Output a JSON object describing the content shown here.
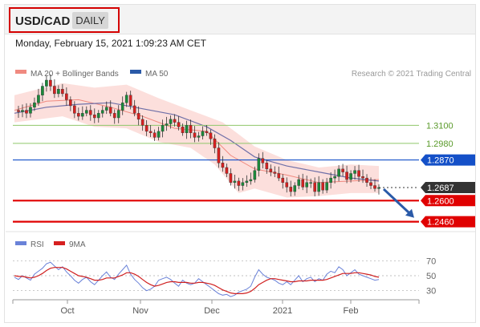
{
  "header": {
    "symbol": "USD/CAD",
    "period": "DAILY",
    "timestamp": "Monday, February 15, 2021 1:09:23 AM CET"
  },
  "legend": {
    "bollinger": "MA 20 + Bollinger Bands",
    "ma50": "MA 50",
    "rsi": "RSI",
    "rsi_ma": "9MA",
    "copyright": "Research © 2021 Trading Central"
  },
  "colors": {
    "up_candle": "#1a8a3a",
    "down_candle": "#d62020",
    "bollinger_fill": "#fbd9d6",
    "ma20": "#f08a80",
    "ma50": "#7070a8",
    "level_green": "#8fc76a",
    "level_blue": "#1450c8",
    "level_red": "#e00000",
    "rsi_line": "#6a82d8",
    "rsi_ma_line": "#d02020",
    "arrow": "#2a5aa8"
  },
  "chart_data": [
    {
      "type": "candlestick",
      "title": "USD/CAD",
      "x_axis": [
        "Oct",
        "Nov",
        "Dec",
        "2021",
        "Feb"
      ],
      "ylim": [
        1.241,
        1.34
      ],
      "current_price": 1.2687,
      "levels": [
        {
          "label": "1.3100",
          "value": 1.31,
          "style": "resistance-green"
        },
        {
          "label": "1.2980",
          "value": 1.298,
          "style": "resistance-green"
        },
        {
          "label": "1.2870",
          "value": 1.287,
          "style": "pivot-blue"
        },
        {
          "label": "1.2600",
          "value": 1.26,
          "style": "support-red"
        },
        {
          "label": "1.2460",
          "value": 1.246,
          "style": "support-red"
        }
      ],
      "current_label": "1.2687",
      "close_path": [
        [
          0,
          1.32
        ],
        [
          5,
          1.319
        ],
        [
          10,
          1.32
        ],
        [
          15,
          1.318
        ],
        [
          20,
          1.322
        ],
        [
          25,
          1.325
        ],
        [
          30,
          1.33
        ],
        [
          35,
          1.336
        ],
        [
          40,
          1.34
        ],
        [
          45,
          1.336
        ],
        [
          50,
          1.331
        ],
        [
          55,
          1.334
        ],
        [
          60,
          1.331
        ],
        [
          65,
          1.327
        ],
        [
          70,
          1.323
        ],
        [
          75,
          1.318
        ],
        [
          80,
          1.316
        ],
        [
          85,
          1.318
        ],
        [
          90,
          1.32
        ],
        [
          95,
          1.317
        ],
        [
          100,
          1.315
        ],
        [
          105,
          1.318
        ],
        [
          110,
          1.32
        ],
        [
          115,
          1.322
        ],
        [
          120,
          1.318
        ],
        [
          125,
          1.315
        ],
        [
          130,
          1.32
        ],
        [
          135,
          1.325
        ],
        [
          140,
          1.33
        ],
        [
          145,
          1.323
        ],
        [
          150,
          1.318
        ],
        [
          155,
          1.314
        ],
        [
          160,
          1.31
        ],
        [
          165,
          1.306
        ],
        [
          170,
          1.305
        ],
        [
          175,
          1.302
        ],
        [
          180,
          1.306
        ],
        [
          185,
          1.31
        ],
        [
          190,
          1.311
        ],
        [
          195,
          1.314
        ],
        [
          200,
          1.312
        ],
        [
          205,
          1.309
        ],
        [
          210,
          1.305
        ],
        [
          215,
          1.31
        ],
        [
          220,
          1.305
        ],
        [
          225,
          1.302
        ],
        [
          230,
          1.303
        ],
        [
          235,
          1.306
        ],
        [
          240,
          1.305
        ],
        [
          245,
          1.301
        ],
        [
          250,
          1.295
        ],
        [
          255,
          1.285
        ],
        [
          260,
          1.282
        ],
        [
          265,
          1.278
        ],
        [
          270,
          1.272
        ],
        [
          275,
          1.273
        ],
        [
          280,
          1.27
        ],
        [
          285,
          1.272
        ],
        [
          290,
          1.273
        ],
        [
          295,
          1.274
        ],
        [
          300,
          1.28
        ],
        [
          305,
          1.288
        ],
        [
          310,
          1.285
        ],
        [
          315,
          1.281
        ],
        [
          320,
          1.279
        ],
        [
          325,
          1.278
        ],
        [
          330,
          1.275
        ],
        [
          335,
          1.272
        ],
        [
          340,
          1.269
        ],
        [
          345,
          1.266
        ],
        [
          350,
          1.27
        ],
        [
          355,
          1.274
        ],
        [
          360,
          1.269
        ],
        [
          365,
          1.272
        ],
        [
          370,
          1.272
        ],
        [
          375,
          1.266
        ],
        [
          380,
          1.272
        ],
        [
          385,
          1.267
        ],
        [
          390,
          1.272
        ],
        [
          395,
          1.275
        ],
        [
          400,
          1.276
        ],
        [
          405,
          1.281
        ],
        [
          410,
          1.279
        ],
        [
          415,
          1.274
        ],
        [
          420,
          1.278
        ],
        [
          425,
          1.28
        ],
        [
          430,
          1.276
        ],
        [
          435,
          1.275
        ],
        [
          440,
          1.272
        ],
        [
          445,
          1.27
        ],
        [
          450,
          1.268
        ],
        [
          455,
          1.2687
        ]
      ],
      "bollinger_upper": [
        [
          0,
          1.33
        ],
        [
          60,
          1.338
        ],
        [
          100,
          1.335
        ],
        [
          140,
          1.337
        ],
        [
          180,
          1.328
        ],
        [
          220,
          1.32
        ],
        [
          260,
          1.312
        ],
        [
          280,
          1.304
        ],
        [
          300,
          1.296
        ],
        [
          340,
          1.287
        ],
        [
          380,
          1.282
        ],
        [
          420,
          1.284
        ],
        [
          455,
          1.283
        ]
      ],
      "bollinger_lower": [
        [
          0,
          1.312
        ],
        [
          60,
          1.316
        ],
        [
          100,
          1.309
        ],
        [
          140,
          1.308
        ],
        [
          180,
          1.299
        ],
        [
          220,
          1.295
        ],
        [
          250,
          1.284
        ],
        [
          280,
          1.265
        ],
        [
          300,
          1.268
        ],
        [
          340,
          1.262
        ],
        [
          380,
          1.263
        ],
        [
          420,
          1.265
        ],
        [
          455,
          1.265
        ]
      ],
      "ma20": [
        [
          0,
          1.32
        ],
        [
          40,
          1.326
        ],
        [
          80,
          1.327
        ],
        [
          120,
          1.322
        ],
        [
          160,
          1.316
        ],
        [
          200,
          1.308
        ],
        [
          240,
          1.306
        ],
        [
          270,
          1.29
        ],
        [
          300,
          1.281
        ],
        [
          340,
          1.277
        ],
        [
          380,
          1.272
        ],
        [
          420,
          1.273
        ],
        [
          455,
          1.274
        ]
      ],
      "ma50": [
        [
          0,
          1.318
        ],
        [
          40,
          1.322
        ],
        [
          80,
          1.324
        ],
        [
          120,
          1.325
        ],
        [
          160,
          1.321
        ],
        [
          200,
          1.317
        ],
        [
          240,
          1.309
        ],
        [
          270,
          1.3
        ],
        [
          300,
          1.289
        ],
        [
          340,
          1.283
        ],
        [
          380,
          1.279
        ],
        [
          420,
          1.275
        ],
        [
          455,
          1.273
        ]
      ],
      "forecast_arrow": {
        "from": 1.2687,
        "to": 1.247
      }
    },
    {
      "type": "line",
      "title": "RSI",
      "ylim": [
        20,
        80
      ],
      "tick_labels": [
        "70",
        "50",
        "30"
      ],
      "ticks": [
        70,
        50,
        30
      ],
      "series": [
        {
          "name": "RSI",
          "values": [
            48,
            45,
            50,
            47,
            44,
            52,
            56,
            60,
            66,
            68,
            63,
            58,
            62,
            55,
            50,
            44,
            40,
            45,
            48,
            42,
            38,
            44,
            50,
            55,
            48,
            45,
            52,
            58,
            64,
            52,
            45,
            40,
            34,
            30,
            32,
            36,
            44,
            46,
            48,
            45,
            40,
            36,
            44,
            40,
            38,
            40,
            46,
            42,
            38,
            34,
            30,
            26,
            24,
            25,
            22,
            24,
            28,
            30,
            32,
            36,
            48,
            58,
            52,
            48,
            46,
            44,
            40,
            38,
            42,
            38,
            44,
            50,
            42,
            46,
            48,
            42,
            46,
            44,
            52,
            56,
            54,
            62,
            58,
            50,
            54,
            58,
            52,
            50,
            48,
            46,
            44,
            45
          ]
        },
        {
          "name": "9MA",
          "values": [
            50,
            49,
            49,
            48,
            47,
            48,
            50,
            53,
            57,
            60,
            61,
            61,
            61,
            59,
            56,
            53,
            50,
            49,
            48,
            46,
            44,
            44,
            45,
            47,
            47,
            47,
            49,
            51,
            54,
            54,
            52,
            49,
            45,
            41,
            38,
            36,
            37,
            39,
            41,
            42,
            42,
            41,
            41,
            41,
            40,
            40,
            41,
            41,
            40,
            39,
            37,
            34,
            31,
            29,
            27,
            26,
            26,
            26,
            27,
            29,
            33,
            38,
            41,
            44,
            46,
            46,
            45,
            44,
            43,
            42,
            42,
            43,
            43,
            43,
            44,
            44,
            44,
            44,
            45,
            47,
            49,
            51,
            53,
            53,
            53,
            54,
            54,
            53,
            52,
            51,
            49,
            48
          ]
        }
      ]
    }
  ]
}
